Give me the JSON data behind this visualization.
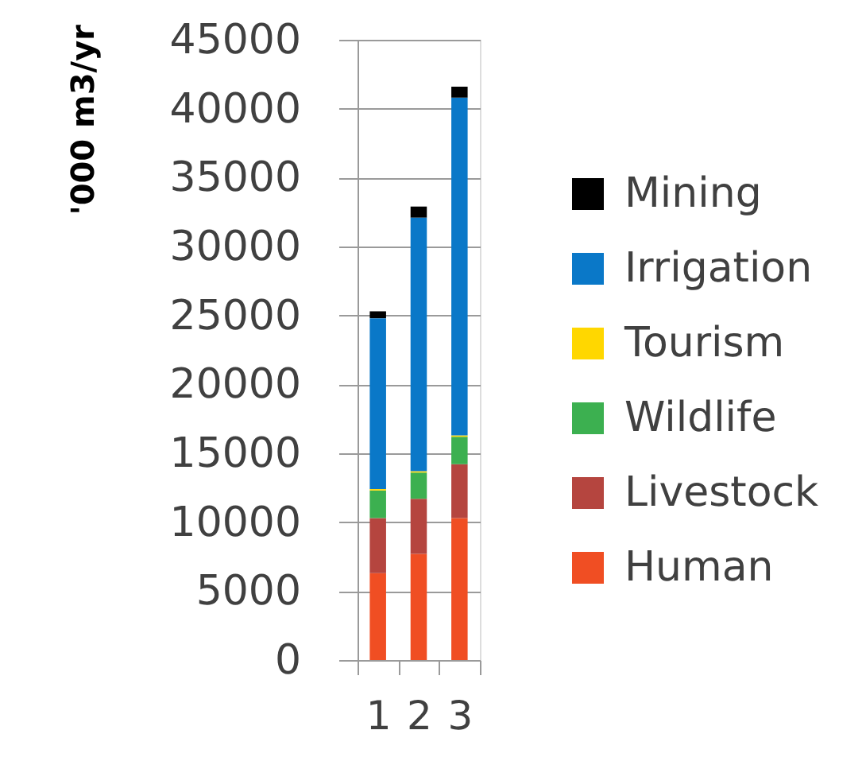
{
  "chart_data": {
    "type": "bar",
    "stacked": true,
    "ylabel": "'000 m3/yr",
    "categories": [
      "1",
      "2",
      "3"
    ],
    "series": [
      {
        "name": "Human",
        "color": "#f04e23",
        "values": [
          6300,
          7700,
          10300
        ]
      },
      {
        "name": "Livestock",
        "color": "#b5453f",
        "values": [
          4000,
          4000,
          3900
        ]
      },
      {
        "name": "Wildlife",
        "color": "#3cb050",
        "values": [
          2000,
          1900,
          2000
        ]
      },
      {
        "name": "Tourism",
        "color": "#ffd700",
        "values": [
          100,
          100,
          100
        ]
      },
      {
        "name": "Irrigation",
        "color": "#0a78c8",
        "values": [
          12400,
          18400,
          24500
        ]
      },
      {
        "name": "Mining",
        "color": "#000000",
        "values": [
          500,
          800,
          800
        ]
      }
    ],
    "ylim": [
      0,
      45000
    ],
    "yticks": [
      0,
      5000,
      10000,
      15000,
      20000,
      25000,
      30000,
      35000,
      40000,
      45000
    ],
    "grid": "y",
    "legend": "right"
  }
}
